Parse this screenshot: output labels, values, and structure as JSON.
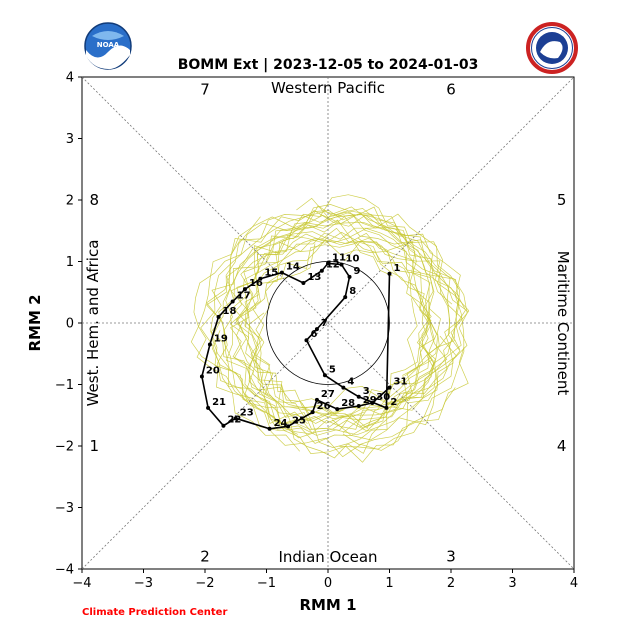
{
  "header": {
    "title": "BOMM Ext | 2023-12-05 to 2024-01-03",
    "noaa_logo_text": "NOAA",
    "nws_logo_text": "NATIONAL WEATHER SERVICE"
  },
  "footer": {
    "credit": "Climate Prediction Center"
  },
  "colors": {
    "ensemble": "#c8c832",
    "obs_observed": "#000000",
    "forecast_segment_1": "#ff0000",
    "forecast_segment_2": "#0000ff",
    "forecast_segment_3": "#cc00cc",
    "credit": "#ff0000"
  },
  "chart_data": {
    "type": "scatter",
    "title": "BOMM Ext | 2023-12-05 to 2024-01-03",
    "xlabel": "RMM 1",
    "ylabel": "RMM 2",
    "xlim": [
      -4,
      4
    ],
    "ylim": [
      -4,
      4
    ],
    "xticks": [
      "−4",
      "−3",
      "−2",
      "−1",
      "0",
      "1",
      "2",
      "3",
      "4"
    ],
    "yticks": [
      "−4",
      "−3",
      "−2",
      "−1",
      "0",
      "1",
      "2",
      "3",
      "4"
    ],
    "unit_circle_radius": 1,
    "phase_labels": [
      {
        "phase": "1",
        "x": -3.8,
        "y": -2.0
      },
      {
        "phase": "2",
        "x": -2.0,
        "y": -3.8
      },
      {
        "phase": "3",
        "x": 2.0,
        "y": -3.8
      },
      {
        "phase": "4",
        "x": 3.8,
        "y": -2.0
      },
      {
        "phase": "5",
        "x": 3.8,
        "y": 2.0
      },
      {
        "phase": "6",
        "x": 2.0,
        "y": 3.8
      },
      {
        "phase": "7",
        "x": -2.0,
        "y": 3.8
      },
      {
        "phase": "8",
        "x": -3.8,
        "y": 2.0
      }
    ],
    "region_labels": {
      "top": "Western Pacific",
      "bottom": "Indian Ocean",
      "left": "West. Hem. and Africa",
      "right": "Maritime Continent"
    },
    "observed": {
      "labels": [
        "1",
        "2",
        "3",
        "4",
        "5",
        "6",
        "7",
        "8",
        "9",
        "10",
        "11",
        "12",
        "13",
        "14",
        "15",
        "16",
        "17",
        "18",
        "19",
        "20",
        "21",
        "22",
        "23",
        "24",
        "25",
        "26",
        "27",
        "28",
        "29",
        "30",
        "31"
      ],
      "points": [
        {
          "label": "1",
          "x": 1.0,
          "y": 0.8
        },
        {
          "label": "2",
          "x": 0.95,
          "y": -1.38
        },
        {
          "label": "3",
          "x": 0.5,
          "y": -1.2
        },
        {
          "label": "4",
          "x": 0.25,
          "y": -1.05
        },
        {
          "label": "5",
          "x": -0.05,
          "y": -0.85
        },
        {
          "label": "6",
          "x": -0.35,
          "y": -0.28
        },
        {
          "label": "7",
          "x": -0.18,
          "y": -0.1
        },
        {
          "label": "8",
          "x": 0.28,
          "y": 0.42
        },
        {
          "label": "9",
          "x": 0.35,
          "y": 0.75
        },
        {
          "label": "10",
          "x": 0.22,
          "y": 0.95
        },
        {
          "label": "11",
          "x": 0.0,
          "y": 0.97
        },
        {
          "label": "12",
          "x": -0.1,
          "y": 0.85
        },
        {
          "label": "13",
          "x": -0.4,
          "y": 0.65
        },
        {
          "label": "14",
          "x": -0.75,
          "y": 0.82
        },
        {
          "label": "15",
          "x": -1.1,
          "y": 0.72
        },
        {
          "label": "16",
          "x": -1.35,
          "y": 0.55
        },
        {
          "label": "17",
          "x": -1.55,
          "y": 0.35
        },
        {
          "label": "18",
          "x": -1.78,
          "y": 0.1
        },
        {
          "label": "19",
          "x": -1.92,
          "y": -0.35
        },
        {
          "label": "20",
          "x": -2.05,
          "y": -0.87
        },
        {
          "label": "21",
          "x": -1.95,
          "y": -1.38
        },
        {
          "label": "22",
          "x": -1.7,
          "y": -1.67
        },
        {
          "label": "23",
          "x": -1.5,
          "y": -1.55
        },
        {
          "label": "24",
          "x": -0.95,
          "y": -1.72
        },
        {
          "label": "25",
          "x": -0.65,
          "y": -1.68
        },
        {
          "label": "26",
          "x": -0.25,
          "y": -1.45
        },
        {
          "label": "27",
          "x": -0.18,
          "y": -1.25
        },
        {
          "label": "28",
          "x": 0.15,
          "y": -1.4
        },
        {
          "label": "29",
          "x": 0.5,
          "y": -1.35
        },
        {
          "label": "30",
          "x": 0.72,
          "y": -1.3
        },
        {
          "label": "31",
          "x": 1.0,
          "y": -1.05
        }
      ]
    }
  }
}
